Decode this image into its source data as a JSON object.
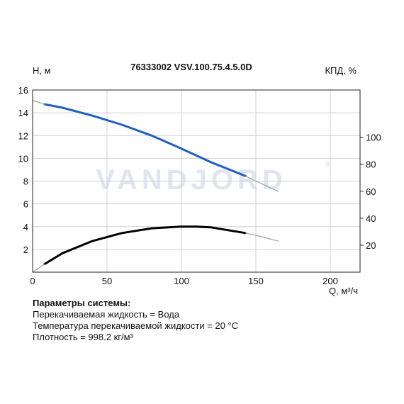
{
  "watermark": "VANDJORD",
  "watermark_mark": "®",
  "params": {
    "title": "Параметры системы:",
    "liquid": "Перекачиваемая жидкость = Вода",
    "temperature": "Температура перекачиваемой жидкости = 20 °C",
    "density": "Плотность = 998.2 кг/м³"
  },
  "chart_data": {
    "type": "line",
    "title": "76333002 VSV.100.75.4.5.0D",
    "xlabel": "Q, м³/ч",
    "ylabel": "H, м",
    "y2label": "КПД, %",
    "xlim": [
      0,
      220
    ],
    "ylim": [
      0,
      16
    ],
    "y2lim": [
      0,
      135
    ],
    "xticks": [
      0,
      50,
      100,
      150,
      200
    ],
    "yticks": [
      2,
      4,
      6,
      8,
      10,
      12,
      14,
      16
    ],
    "y2ticks": [
      20,
      40,
      60,
      80,
      100
    ],
    "grid": true,
    "colors": {
      "head": "#1f5fbf",
      "efficiency": "#000000",
      "extension": "#a0a0a0",
      "grid": "#d0d0d0"
    },
    "series": [
      {
        "axis": "left",
        "x": [
          8,
          20,
          40,
          60,
          80,
          100,
          120,
          143
        ],
        "y": [
          14.75,
          14.45,
          13.75,
          12.95,
          12.0,
          10.85,
          9.65,
          8.45
        ]
      },
      {
        "axis": "left",
        "x": [
          0,
          8
        ],
        "y": [
          15.1,
          14.75
        ]
      },
      {
        "axis": "left",
        "x": [
          143,
          150,
          165
        ],
        "y": [
          8.45,
          8.0,
          7.1
        ]
      },
      {
        "axis": "right",
        "x": [
          8,
          20,
          40,
          60,
          80,
          100,
          110,
          120,
          143
        ],
        "y": [
          6,
          14,
          23,
          29,
          32.5,
          33.8,
          33.8,
          33.2,
          29
        ]
      },
      {
        "axis": "right",
        "x": [
          0,
          8
        ],
        "y": [
          0,
          6
        ]
      },
      {
        "axis": "right",
        "x": [
          143,
          155,
          165
        ],
        "y": [
          29,
          26,
          23
        ]
      }
    ]
  }
}
